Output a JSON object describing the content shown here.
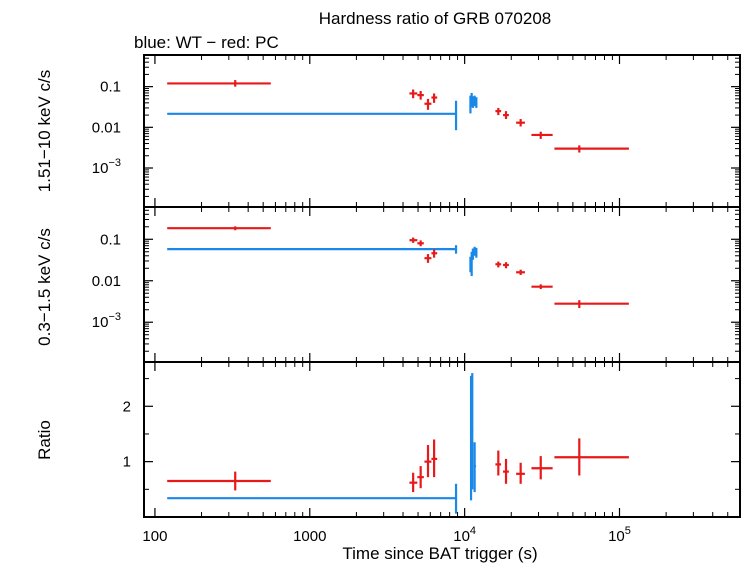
{
  "chart_data": {
    "type": "scatter",
    "title": "Hardness ratio of GRB 070208",
    "subtitle": "blue: WT − red: PC",
    "xlabel": "Time since BAT trigger (s)",
    "xscale": "log",
    "xlim": [
      85,
      600000
    ],
    "x_tick_labels": [
      "100",
      "1000",
      "10^4",
      "10^5"
    ],
    "colors": {
      "WT": "#1a88e8",
      "PC": "#e81919",
      "frame": "#000000"
    },
    "panels": [
      {
        "id": "hard",
        "ylabel": "1.51−10 keV c/s",
        "yscale": "log",
        "ylim": [
          0.00011,
          0.6
        ],
        "y_tick_labels": [
          "0.1",
          "0.01",
          "10^-3"
        ],
        "series": [
          {
            "name": "WT",
            "points": [
              {
                "x": 4700,
                "y": 0.0215,
                "xlo": 120,
                "xhi": 8800,
                "ylo": 0.0215,
                "yhi": 0.0215
              },
              {
                "x": 8800,
                "y": 0.0215,
                "xlo": 8800,
                "xhi": 8800,
                "ylo": 0.0085,
                "yhi": 0.045
              },
              {
                "x": 10900,
                "y": 0.035,
                "xlo": 10750,
                "xhi": 11050,
                "ylo": 0.022,
                "yhi": 0.06
              },
              {
                "x": 11100,
                "y": 0.05,
                "xlo": 10950,
                "xhi": 11250,
                "ylo": 0.032,
                "yhi": 0.07
              },
              {
                "x": 11300,
                "y": 0.042,
                "xlo": 11150,
                "xhi": 11450,
                "ylo": 0.03,
                "yhi": 0.058
              },
              {
                "x": 11600,
                "y": 0.045,
                "xlo": 11400,
                "xhi": 11850,
                "ylo": 0.033,
                "yhi": 0.06
              },
              {
                "x": 11900,
                "y": 0.04,
                "xlo": 11750,
                "xhi": 12100,
                "ylo": 0.03,
                "yhi": 0.055
              }
            ]
          },
          {
            "name": "PC",
            "points": [
              {
                "x": 330,
                "y": 0.12,
                "xlo": 120,
                "xhi": 560,
                "ylo": 0.1,
                "yhi": 0.145
              },
              {
                "x": 4650,
                "y": 0.068,
                "xlo": 4400,
                "xhi": 4950,
                "ylo": 0.052,
                "yhi": 0.085
              },
              {
                "x": 5200,
                "y": 0.062,
                "xlo": 4950,
                "xhi": 5450,
                "ylo": 0.048,
                "yhi": 0.078
              },
              {
                "x": 5800,
                "y": 0.038,
                "xlo": 5500,
                "xhi": 6100,
                "ylo": 0.027,
                "yhi": 0.05
              },
              {
                "x": 6350,
                "y": 0.054,
                "xlo": 6100,
                "xhi": 6650,
                "ylo": 0.04,
                "yhi": 0.068
              },
              {
                "x": 16500,
                "y": 0.025,
                "xlo": 15800,
                "xhi": 17200,
                "ylo": 0.02,
                "yhi": 0.03
              },
              {
                "x": 18500,
                "y": 0.02,
                "xlo": 17700,
                "xhi": 19300,
                "ylo": 0.016,
                "yhi": 0.025
              },
              {
                "x": 23000,
                "y": 0.013,
                "xlo": 21500,
                "xhi": 24500,
                "ylo": 0.0105,
                "yhi": 0.016
              },
              {
                "x": 31000,
                "y": 0.0065,
                "xlo": 27000,
                "xhi": 37000,
                "ylo": 0.0052,
                "yhi": 0.0078
              },
              {
                "x": 55000,
                "y": 0.003,
                "xlo": 38000,
                "xhi": 115000,
                "ylo": 0.0024,
                "yhi": 0.0036
              }
            ]
          }
        ]
      },
      {
        "id": "soft",
        "ylabel": "0.3−1.5 keV c/s",
        "yscale": "log",
        "ylim": [
          0.00011,
          0.6
        ],
        "y_tick_labels": [
          "0.1",
          "0.01",
          "10^-3"
        ],
        "series": [
          {
            "name": "WT",
            "points": [
              {
                "x": 4700,
                "y": 0.058,
                "xlo": 120,
                "xhi": 8800,
                "ylo": 0.058,
                "yhi": 0.058
              },
              {
                "x": 8800,
                "y": 0.058,
                "xlo": 8800,
                "xhi": 8800,
                "ylo": 0.045,
                "yhi": 0.072
              },
              {
                "x": 10900,
                "y": 0.025,
                "xlo": 10750,
                "xhi": 11050,
                "ylo": 0.016,
                "yhi": 0.038
              },
              {
                "x": 11100,
                "y": 0.032,
                "xlo": 10950,
                "xhi": 11250,
                "ylo": 0.013,
                "yhi": 0.05
              },
              {
                "x": 11300,
                "y": 0.045,
                "xlo": 11150,
                "xhi": 11450,
                "ylo": 0.032,
                "yhi": 0.06
              },
              {
                "x": 11600,
                "y": 0.052,
                "xlo": 11400,
                "xhi": 11850,
                "ylo": 0.04,
                "yhi": 0.066
              },
              {
                "x": 11900,
                "y": 0.048,
                "xlo": 11750,
                "xhi": 12100,
                "ylo": 0.036,
                "yhi": 0.062
              }
            ]
          },
          {
            "name": "PC",
            "points": [
              {
                "x": 330,
                "y": 0.185,
                "xlo": 120,
                "xhi": 560,
                "ylo": 0.165,
                "yhi": 0.205
              },
              {
                "x": 4650,
                "y": 0.095,
                "xlo": 4400,
                "xhi": 4950,
                "ylo": 0.082,
                "yhi": 0.11
              },
              {
                "x": 5200,
                "y": 0.08,
                "xlo": 4950,
                "xhi": 5450,
                "ylo": 0.068,
                "yhi": 0.094
              },
              {
                "x": 5800,
                "y": 0.035,
                "xlo": 5500,
                "xhi": 6100,
                "ylo": 0.027,
                "yhi": 0.044
              },
              {
                "x": 6350,
                "y": 0.046,
                "xlo": 6100,
                "xhi": 6650,
                "ylo": 0.036,
                "yhi": 0.057
              },
              {
                "x": 16500,
                "y": 0.025,
                "xlo": 15800,
                "xhi": 17200,
                "ylo": 0.021,
                "yhi": 0.029
              },
              {
                "x": 18500,
                "y": 0.024,
                "xlo": 17700,
                "xhi": 19300,
                "ylo": 0.02,
                "yhi": 0.028
              },
              {
                "x": 23000,
                "y": 0.016,
                "xlo": 21500,
                "xhi": 24500,
                "ylo": 0.0138,
                "yhi": 0.0185
              },
              {
                "x": 31000,
                "y": 0.0072,
                "xlo": 27000,
                "xhi": 37000,
                "ylo": 0.0063,
                "yhi": 0.0082
              },
              {
                "x": 55000,
                "y": 0.0028,
                "xlo": 38000,
                "xhi": 115000,
                "ylo": 0.0022,
                "yhi": 0.0034
              }
            ]
          }
        ]
      },
      {
        "id": "ratio",
        "ylabel": "Ratio",
        "yscale": "linear",
        "ylim": [
          0,
          2.8
        ],
        "y_tick_labels": [
          "1",
          "2"
        ],
        "series": [
          {
            "name": "WT",
            "points": [
              {
                "x": 4700,
                "y": 0.34,
                "xlo": 120,
                "xhi": 8800,
                "ylo": 0.34,
                "yhi": 0.34
              },
              {
                "x": 8800,
                "y": 0.34,
                "xlo": 8800,
                "xhi": 8800,
                "ylo": 0.06,
                "yhi": 0.6
              },
              {
                "x": 11000,
                "y": 1.25,
                "xlo": 10850,
                "xhi": 11150,
                "ylo": 0.3,
                "yhi": 2.55
              },
              {
                "x": 11200,
                "y": 1.55,
                "xlo": 11050,
                "xhi": 11350,
                "ylo": 0.5,
                "yhi": 2.6
              },
              {
                "x": 11600,
                "y": 0.92,
                "xlo": 11400,
                "xhi": 11850,
                "ylo": 0.45,
                "yhi": 1.35
              }
            ]
          },
          {
            "name": "PC",
            "points": [
              {
                "x": 330,
                "y": 0.65,
                "xlo": 120,
                "xhi": 560,
                "ylo": 0.48,
                "yhi": 0.82
              },
              {
                "x": 4650,
                "y": 0.62,
                "xlo": 4400,
                "xhi": 4950,
                "ylo": 0.45,
                "yhi": 0.8
              },
              {
                "x": 5200,
                "y": 0.72,
                "xlo": 4950,
                "xhi": 5450,
                "ylo": 0.52,
                "yhi": 0.92
              },
              {
                "x": 5800,
                "y": 1.0,
                "xlo": 5500,
                "xhi": 6100,
                "ylo": 0.72,
                "yhi": 1.3
              },
              {
                "x": 6350,
                "y": 1.05,
                "xlo": 6100,
                "xhi": 6650,
                "ylo": 0.72,
                "yhi": 1.4
              },
              {
                "x": 16500,
                "y": 0.95,
                "xlo": 15800,
                "xhi": 17200,
                "ylo": 0.75,
                "yhi": 1.2
              },
              {
                "x": 18500,
                "y": 0.82,
                "xlo": 17700,
                "xhi": 19300,
                "ylo": 0.6,
                "yhi": 1.05
              },
              {
                "x": 23000,
                "y": 0.78,
                "xlo": 21500,
                "xhi": 24500,
                "ylo": 0.6,
                "yhi": 0.98
              },
              {
                "x": 31000,
                "y": 0.88,
                "xlo": 27000,
                "xhi": 37000,
                "ylo": 0.68,
                "yhi": 1.1
              },
              {
                "x": 55000,
                "y": 1.08,
                "xlo": 38000,
                "xhi": 115000,
                "ylo": 0.75,
                "yhi": 1.42
              }
            ]
          }
        ]
      }
    ]
  }
}
